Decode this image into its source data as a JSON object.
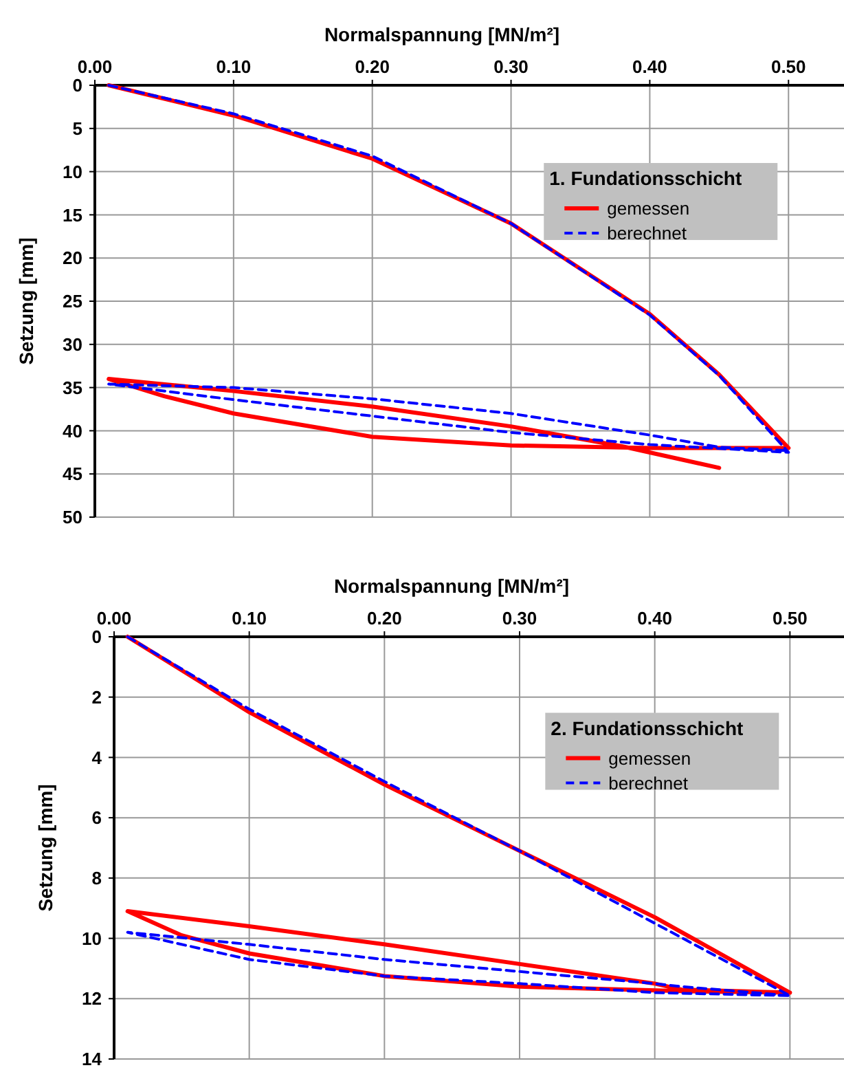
{
  "chart_data": [
    {
      "type": "line",
      "xlabel": "Normalspannung [MN/m²]",
      "ylabel": "Setzung [mm]",
      "legend_title": "1. Fundationsschicht",
      "xlim": [
        0,
        0.54
      ],
      "ylim": [
        50,
        0
      ],
      "xticks": [
        {
          "value": 0,
          "label": "0.00"
        },
        {
          "value": 0.1,
          "label": "0.10"
        },
        {
          "value": 0.2,
          "label": "0.20"
        },
        {
          "value": 0.3,
          "label": "0.30"
        },
        {
          "value": 0.4,
          "label": "0.40"
        },
        {
          "value": 0.5,
          "label": "0.50"
        }
      ],
      "yticks": [
        0,
        5,
        10,
        15,
        20,
        25,
        30,
        35,
        40,
        45,
        50
      ],
      "grid": true,
      "legend": "top right",
      "series": [
        {
          "name": "gemessen",
          "color": "#ff0000",
          "line_style": "solid",
          "x": [
            0.01,
            0.1,
            0.2,
            0.3,
            0.4,
            0.45,
            0.5,
            0.4,
            0.3,
            0.2,
            0.1,
            0.05,
            0.01,
            0.1,
            0.2,
            0.3,
            0.38,
            0.45
          ],
          "values": [
            0,
            3.5,
            8.5,
            16,
            26.5,
            33.5,
            42,
            42,
            41.7,
            40.7,
            38,
            36,
            34,
            35.4,
            37.2,
            39.5,
            41.8,
            44.3
          ]
        },
        {
          "name": "berechnet",
          "color": "#0000ff",
          "line_style": "dashed",
          "x": [
            0.01,
            0.1,
            0.2,
            0.3,
            0.4,
            0.45,
            0.5,
            0.4,
            0.3,
            0.2,
            0.1,
            0.01,
            0.1,
            0.2,
            0.3,
            0.4,
            0.45,
            0.5
          ],
          "values": [
            0,
            3.3,
            8.2,
            16,
            26.6,
            33.6,
            42.5,
            41.6,
            40.2,
            38.3,
            36.4,
            34.6,
            35,
            36.3,
            38,
            40.5,
            41.9,
            42.3
          ]
        }
      ]
    },
    {
      "type": "line",
      "xlabel": "Normalspannung [MN/m²]",
      "ylabel": "Setzung  [mm]",
      "legend_title": "2. Fundationsschicht",
      "xlim": [
        0,
        0.54
      ],
      "ylim": [
        14,
        0
      ],
      "xticks": [
        {
          "value": 0,
          "label": "0.00"
        },
        {
          "value": 0.1,
          "label": "0.10"
        },
        {
          "value": 0.2,
          "label": "0.20"
        },
        {
          "value": 0.3,
          "label": "0.30"
        },
        {
          "value": 0.4,
          "label": "0.40"
        },
        {
          "value": 0.5,
          "label": "0.50"
        }
      ],
      "yticks": [
        0,
        2,
        4,
        6,
        8,
        10,
        12,
        14
      ],
      "grid": true,
      "legend": "top right",
      "series": [
        {
          "name": "gemessen",
          "color": "#ff0000",
          "line_style": "solid",
          "x": [
            0.01,
            0.1,
            0.2,
            0.3,
            0.4,
            0.5,
            0.42,
            0.3,
            0.2,
            0.1,
            0.05,
            0.01,
            0.1,
            0.2,
            0.3,
            0.4,
            0.42,
            0.5
          ],
          "values": [
            0,
            2.5,
            4.9,
            7.1,
            9.3,
            11.8,
            11.75,
            11.6,
            11.25,
            10.5,
            9.9,
            9.1,
            9.6,
            10.2,
            10.85,
            11.5,
            11.7,
            11.8
          ]
        },
        {
          "name": "berechnet",
          "color": "#0000ff",
          "line_style": "dashed",
          "x": [
            0.01,
            0.1,
            0.2,
            0.3,
            0.4,
            0.5,
            0.4,
            0.3,
            0.2,
            0.1,
            0.01,
            0.1,
            0.2,
            0.3,
            0.4,
            0.42,
            0.5
          ],
          "values": [
            0,
            2.4,
            4.8,
            7.1,
            9.5,
            11.9,
            11.8,
            11.5,
            11.25,
            10.7,
            9.8,
            10.2,
            10.7,
            11.1,
            11.5,
            11.6,
            11.9
          ]
        }
      ]
    }
  ]
}
